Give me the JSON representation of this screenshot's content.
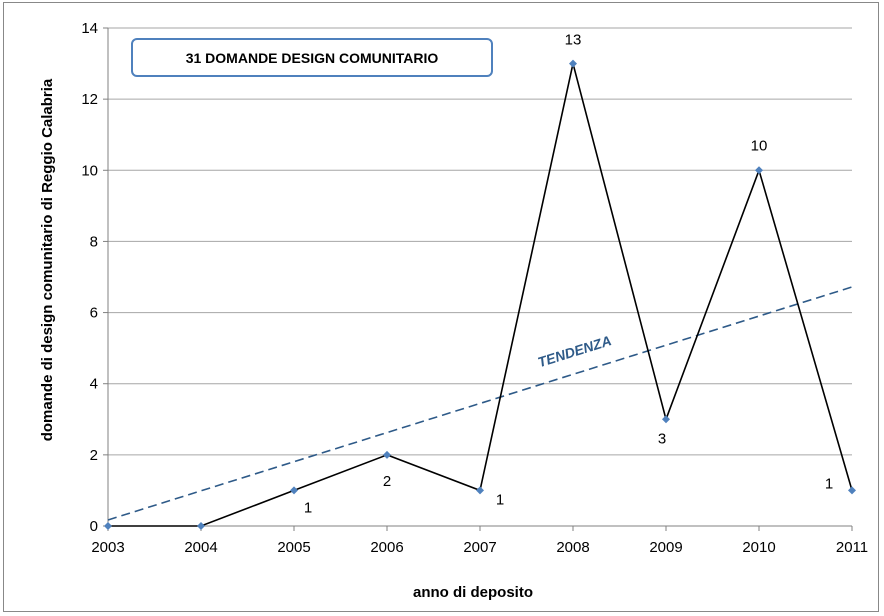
{
  "chart_data": {
    "type": "line",
    "title": "31 DOMANDE DESIGN COMUNITARIO",
    "xlabel": "anno di deposito",
    "ylabel": "domande di design comunitario di Reggio Calabria",
    "categories": [
      "2003",
      "2004",
      "2005",
      "2006",
      "2007",
      "2008",
      "2009",
      "2010",
      "2011"
    ],
    "series": [
      {
        "values": [
          0,
          0,
          1,
          2,
          1,
          13,
          3,
          10,
          1
        ],
        "color": "#000000",
        "marker_color": "#4f81bd"
      }
    ],
    "data_labels": [
      "",
      "",
      "1",
      "2",
      "1",
      "13",
      "3",
      "10",
      "1"
    ],
    "trendline": {
      "label": "TENDENZA",
      "start": 0.17,
      "end": 6.72,
      "color": "#2e5a88",
      "style": "dashed"
    },
    "ylim": [
      0,
      14
    ],
    "yticks": [
      0,
      2,
      4,
      6,
      8,
      10,
      12,
      14
    ],
    "grid": true,
    "legend": "none"
  }
}
